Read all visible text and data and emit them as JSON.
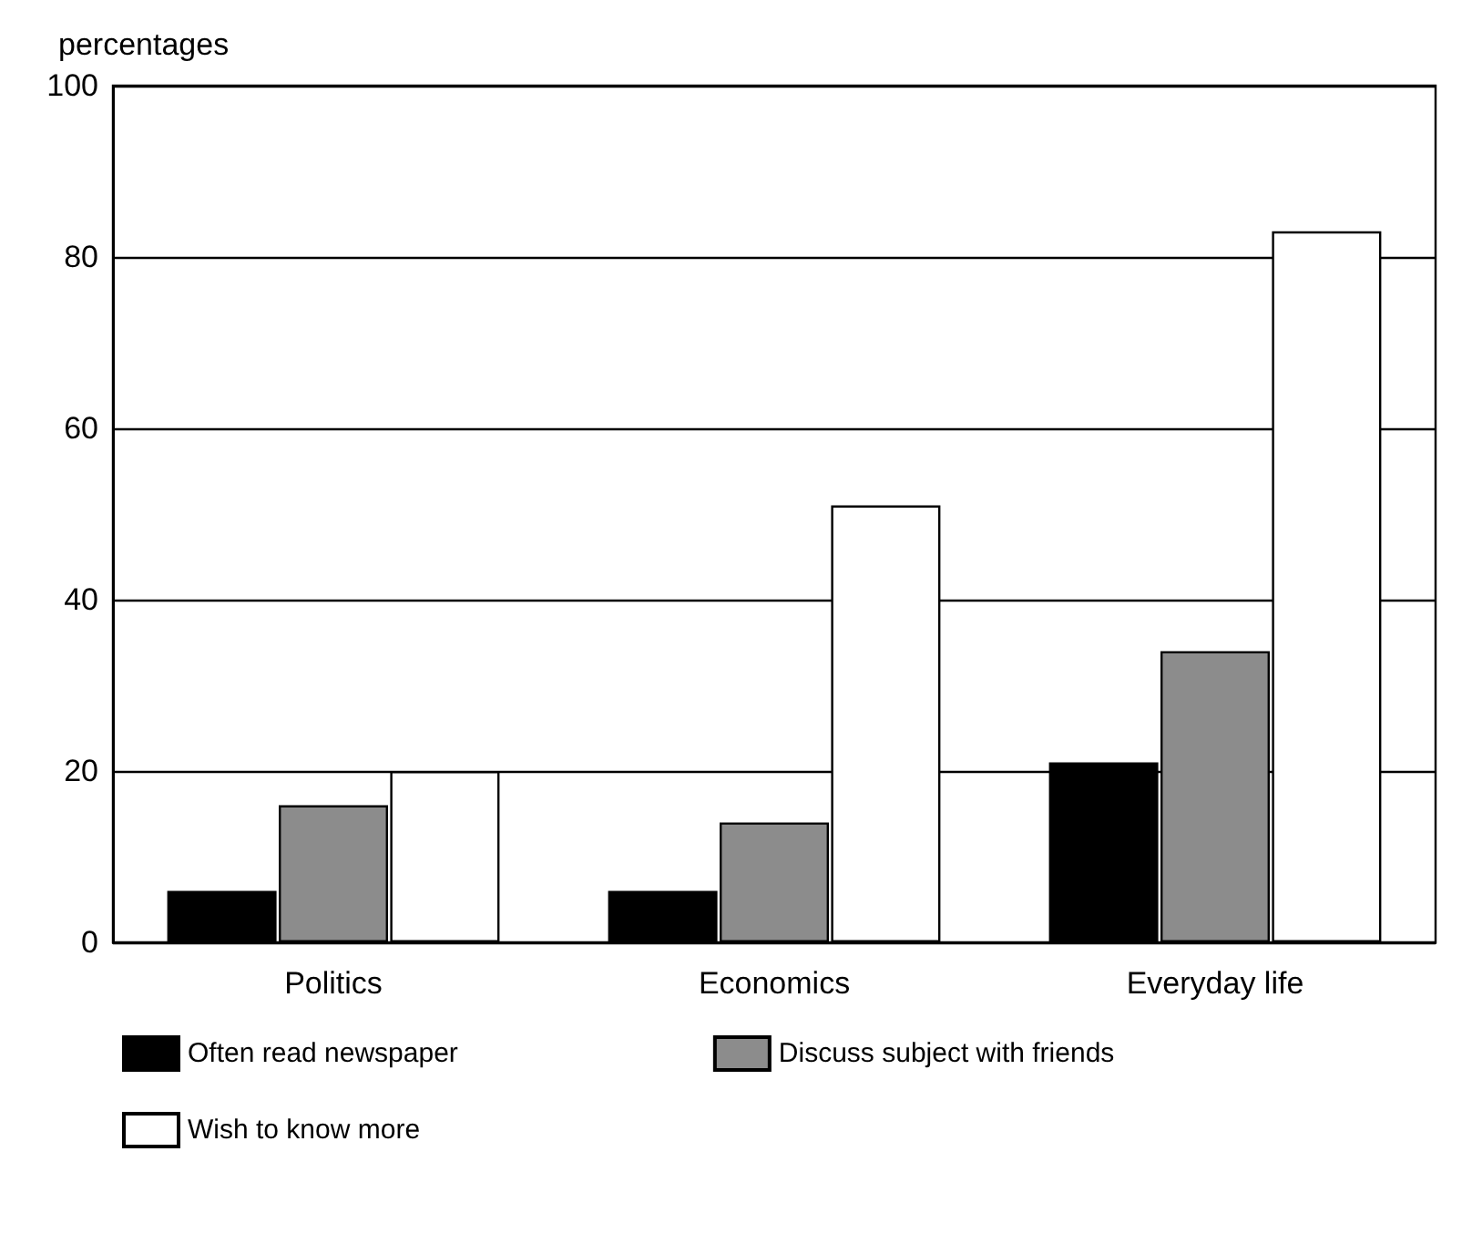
{
  "chart_data": {
    "type": "bar",
    "ylabel": "percentages",
    "categories": [
      "Politics",
      "Economics",
      "Everyday life"
    ],
    "series": [
      {
        "name": "Often read newspaper",
        "color": "#000000",
        "values": [
          6,
          6,
          21
        ]
      },
      {
        "name": "Discuss subject with friends",
        "color": "#8c8c8c",
        "values": [
          16,
          14,
          34
        ]
      },
      {
        "name": "Wish to know more",
        "color": "#ffffff",
        "values": [
          20,
          51,
          83
        ]
      }
    ],
    "ylim": [
      0,
      100
    ],
    "yticks": [
      0,
      20,
      40,
      60,
      80,
      100
    ],
    "grid": "y",
    "legend": "bottom"
  }
}
